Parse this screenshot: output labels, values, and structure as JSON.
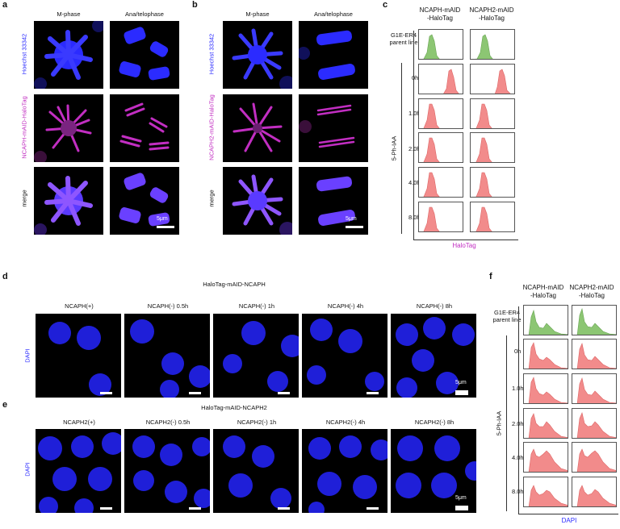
{
  "panels": {
    "a": {
      "label": "a",
      "columns": [
        "M-phase",
        "Ana/telophase"
      ],
      "rows": [
        "Hoechst 33342",
        "NCAPH-mAID-HaloTag",
        "merge"
      ],
      "scalebar": "5μm"
    },
    "b": {
      "label": "b",
      "columns": [
        "M-phase",
        "Ana/telophase"
      ],
      "rows": [
        "Hoechst 33342",
        "NCAPH2-mAID-HaloTag",
        "merge"
      ],
      "scalebar": "5μm"
    },
    "c": {
      "label": "c",
      "col1": [
        "NCAPH-mAID",
        "-HaloTag"
      ],
      "col2": [
        "NCAPH2-mAID",
        "-HaloTag"
      ],
      "parent": [
        "G1E-ER4",
        "parent line"
      ],
      "times": [
        "0h",
        "1.0h",
        "2.0h",
        "4.0h",
        "8.0h"
      ],
      "treatment": "5-Ph-IAA",
      "xlabel": "HaloTag"
    },
    "d": {
      "label": "d",
      "title": "HaloTag-mAID-NCAPH",
      "columns": [
        "NCAPH(+)",
        "NCAPH(-) 0.5h",
        "NCAPH(-) 1h",
        "NCAPH(-) 4h",
        "NCAPH(-) 8h"
      ],
      "row": "DAPI",
      "scalebar": "5μm"
    },
    "e": {
      "label": "e",
      "title": "HaloTag-mAID-NCAPH2",
      "columns": [
        "NCAPH2(+)",
        "NCAPH2(-) 0.5h",
        "NCAPH2(-) 1h",
        "NCAPH2(-) 4h",
        "NCAPH2(-) 8h"
      ],
      "row": "DAPI",
      "scalebar": "5μm"
    },
    "f": {
      "label": "f",
      "col1": [
        "NCAPH-mAID",
        "-HaloTag"
      ],
      "col2": [
        "NCAPH2-mAID",
        "-HaloTag"
      ],
      "parent": [
        "G1E-ER4",
        "parent line"
      ],
      "times": [
        "0h",
        "1.0h",
        "2.0h",
        "4.0h",
        "8.0h"
      ],
      "treatment": "5-Ph-IAA",
      "xlabel": "DAPI"
    }
  },
  "colors": {
    "hoechst": "#2b2bff",
    "halo": "#c22ec2",
    "merge": "#7a3cff",
    "green_hist": "#8cc673",
    "red_hist": "#f28b8b"
  }
}
